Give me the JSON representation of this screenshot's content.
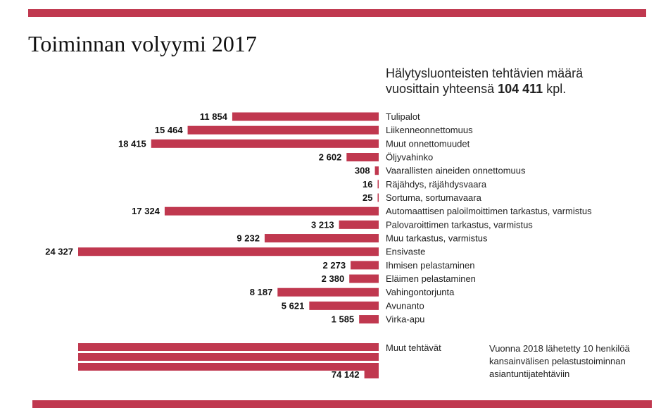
{
  "title": "Toiminnan volyymi 2017",
  "subtitle": {
    "line1": "Hälytysluonteisten tehtävien määrä",
    "line2_prefix": "vuosittain yhteensä ",
    "total": "104 411",
    "line2_suffix": " kpl."
  },
  "note": {
    "line1": "Vuonna 2018 lähetetty 10 henkilöä",
    "line2": "kansainvälisen pelastustoiminnan",
    "line3": "asiantuntijatehtäviin"
  },
  "colors": {
    "bar": "#c0384f",
    "band": "#c0384f"
  },
  "chart_data": {
    "type": "bar",
    "orientation": "horizontal",
    "categories": [
      "Tulipalot",
      "Liikenneonnettomuus",
      "Muut onnettomuudet",
      "Öljyvahinko",
      "Vaarallisten aineiden onnettomuus",
      "Räjähdys, räjähdysvaara",
      "Sortuma, sortumavaara",
      "Automaattisen paloilmoittimen tarkastus, varmistus",
      "Palovaroittimen tarkastus, varmistus",
      "Muu tarkastus, varmistus",
      "Ensivaste",
      "Ihmisen pelastaminen",
      "Eläimen pelastaminen",
      "Vahingontorjunta",
      "Avunanto",
      "Virka-apu"
    ],
    "values": [
      11854,
      15464,
      18415,
      2602,
      308,
      16,
      25,
      17324,
      3213,
      9232,
      24327,
      2273,
      2380,
      8187,
      5621,
      1585
    ],
    "value_labels": [
      "11 854",
      "15 464",
      "18 415",
      "2 602",
      "308",
      "16",
      "25",
      "17 324",
      "3 213",
      "9 232",
      "24 327",
      "2 273",
      "2 380",
      "8 187",
      "5 621",
      "1 585"
    ],
    "other": {
      "label": "Muut tehtävät",
      "value": 74142,
      "value_label": "74 142"
    }
  }
}
